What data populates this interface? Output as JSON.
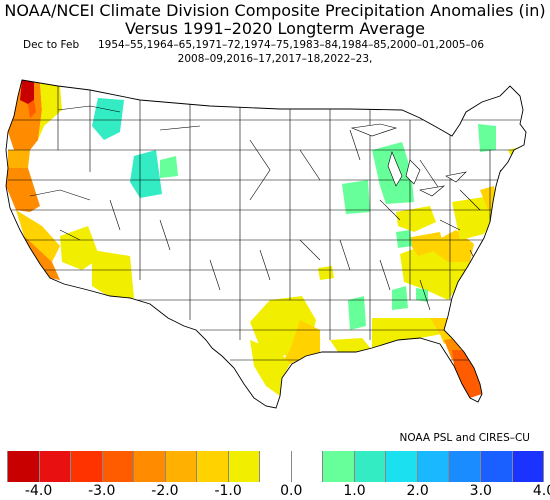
{
  "title_line1": "NOAA/NCEI Climate Division Composite Precipitation Anomalies (in)",
  "title_line2": "Versus 1991–2020 Longterm Average",
  "season_label": "Dec to Feb",
  "years_line1": "1954–55,1964–65,1971–72,1974–75,1983–84,1984–85,2000–01,2005–06",
  "years_line2": "2008–09,2016–17,2017–18,2022–23,",
  "credit": "NOAA PSL and CIRES–CU",
  "colorbar": {
    "colors": [
      "#c80000",
      "#e81010",
      "#ff3300",
      "#ff5c00",
      "#ff8c00",
      "#ffb000",
      "#ffd200",
      "#f2ee00",
      "#ffffff",
      "#ffffff",
      "#66ff99",
      "#33ecc4",
      "#1ae0f0",
      "#1ab8ff",
      "#1a8cff",
      "#1a5fff",
      "#1a33ff"
    ],
    "tick_labels": [
      "-4.0",
      "-3.0",
      "-2.0",
      "-1.0",
      "0.0",
      "1.0",
      "2.0",
      "3.0",
      "4.0"
    ]
  },
  "colors": {
    "dry_strong": "#c80000",
    "dry_mod": "#ff8c00",
    "dry_light": "#ffd200",
    "dry_weak": "#f2ee00",
    "wet_weak": "#66ff99",
    "wet_light": "#33ecc4",
    "neutral": "#ffffff",
    "border": "#000000"
  }
}
